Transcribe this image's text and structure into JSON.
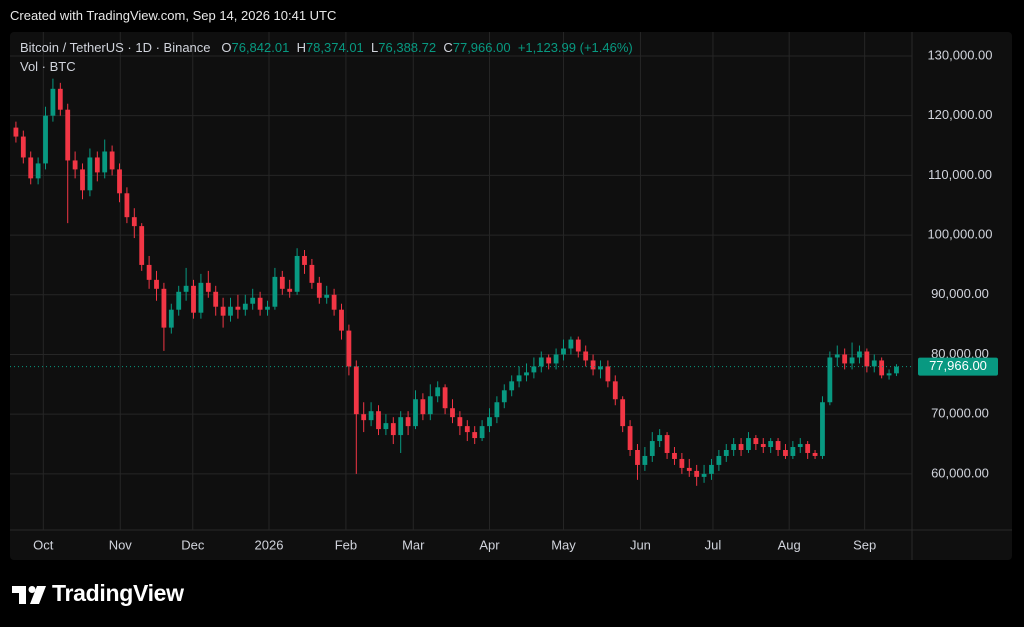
{
  "watermark": "Created with TradingView.com, Sep 14, 2026 10:41 UTC",
  "brand": "TradingView",
  "chart_data": {
    "type": "candlestick",
    "title": "Bitcoin / TetherUS · 1D · Binance",
    "header": {
      "open_prefix": "O",
      "open_label": "76,842.01",
      "high_prefix": "H",
      "high_label": "78,374.01",
      "low_prefix": "L",
      "low_label": "76,388.72",
      "close_prefix": "C",
      "close_label": "77,966.00",
      "change_label": "+1,123.99 (+1.46%)"
    },
    "volume_label": "Vol · BTC",
    "last_price_label": "77,966.00",
    "up_color": "#089981",
    "down_color": "#f23645",
    "grid": true,
    "ylim": [
      50600,
      134350
    ],
    "yticks": [
      {
        "value": 60000,
        "label": "60,000.00"
      },
      {
        "value": 70000,
        "label": "70,000.00"
      },
      {
        "value": 80000,
        "label": "80,000.00"
      },
      {
        "value": 90000,
        "label": "90,000.00"
      },
      {
        "value": 100000,
        "label": "100,000.00"
      },
      {
        "value": 110000,
        "label": "110,000.00"
      },
      {
        "value": 120000,
        "label": "120,000.00"
      },
      {
        "value": 130000,
        "label": "130,000.00"
      }
    ],
    "xlim": [
      -0.8,
      121.1
    ],
    "xticks": [
      {
        "value": 3.7,
        "label": "Oct"
      },
      {
        "value": 14.1,
        "label": "Nov"
      },
      {
        "value": 23.9,
        "label": "Dec"
      },
      {
        "value": 34.2,
        "label": "2026"
      },
      {
        "value": 44.6,
        "label": "Feb"
      },
      {
        "value": 53.7,
        "label": "Mar"
      },
      {
        "value": 64.0,
        "label": "Apr"
      },
      {
        "value": 74.0,
        "label": "May"
      },
      {
        "value": 84.4,
        "label": "Jun"
      },
      {
        "value": 94.2,
        "label": "Jul"
      },
      {
        "value": 104.5,
        "label": "Aug"
      },
      {
        "value": 114.7,
        "label": "Sep"
      }
    ],
    "open": [
      118000,
      116500,
      113000,
      109500,
      112000,
      120000,
      124500,
      121000,
      112500,
      111000,
      107500,
      113000,
      110500,
      114000,
      111000,
      107000,
      103000,
      101500,
      95000,
      92500,
      91000,
      84500,
      87500,
      90500,
      91500,
      87000,
      92000,
      90500,
      88000,
      86500,
      88000,
      87500,
      88500,
      89500,
      87500,
      88000,
      93000,
      91000,
      90500,
      96500,
      95000,
      92000,
      89500,
      90000,
      87500,
      84000,
      78000,
      70000,
      69000,
      70500,
      67500,
      68500,
      66500,
      69500,
      68000,
      72500,
      70000,
      73000,
      74500,
      71000,
      69500,
      68000,
      67000,
      66000,
      68000,
      69500,
      72000,
      74000,
      75500,
      76500,
      77000,
      78000,
      79500,
      78500,
      80000,
      81000,
      82500,
      80500,
      79000,
      77500,
      78000,
      75500,
      72500,
      68000,
      64000,
      61500,
      63000,
      65500,
      66500,
      63500,
      62500,
      61000,
      60500,
      59500,
      60000,
      61500,
      63000,
      64000,
      65000,
      64000,
      66000,
      65000,
      64500,
      65500,
      64000,
      63000,
      64500,
      65000,
      63500,
      63000,
      72000,
      79500,
      80000,
      78500,
      79500,
      80500,
      78000,
      79000,
      76500,
      76842.01
    ],
    "high": [
      119000,
      117500,
      114000,
      113000,
      121500,
      126200,
      125500,
      122000,
      114000,
      112000,
      114500,
      114000,
      116000,
      115000,
      112000,
      108000,
      104500,
      102000,
      96500,
      94000,
      92000,
      88500,
      91500,
      94500,
      92500,
      93500,
      94000,
      91500,
      89500,
      89500,
      90000,
      90000,
      91000,
      90500,
      89000,
      94500,
      94000,
      92500,
      97800,
      97500,
      96000,
      93000,
      91500,
      91000,
      88500,
      85000,
      79000,
      72000,
      72000,
      71500,
      70000,
      69500,
      70500,
      70500,
      74000,
      73500,
      75000,
      75500,
      75000,
      72500,
      70500,
      69000,
      68000,
      69000,
      71000,
      73000,
      75000,
      76500,
      78000,
      78500,
      79500,
      80500,
      80000,
      81000,
      82500,
      83000,
      83000,
      81500,
      80000,
      79000,
      79000,
      76500,
      73000,
      69000,
      65000,
      64500,
      67000,
      67500,
      67000,
      64500,
      63500,
      62500,
      61500,
      61500,
      62500,
      64000,
      65000,
      66000,
      66000,
      67000,
      66500,
      66000,
      66000,
      66000,
      65000,
      65500,
      66000,
      65500,
      64000,
      73000,
      80500,
      81500,
      81000,
      82000,
      81500,
      81000,
      80000,
      79500,
      77500,
      78374.01
    ],
    "low": [
      115500,
      112000,
      108500,
      108500,
      111000,
      119000,
      120000,
      102000,
      109500,
      106000,
      106500,
      109000,
      109500,
      110000,
      105500,
      102000,
      99500,
      94000,
      91000,
      89000,
      80600,
      83500,
      86500,
      89000,
      86000,
      86000,
      89500,
      86500,
      84500,
      85500,
      86000,
      86500,
      87500,
      86500,
      86500,
      87500,
      90000,
      89500,
      90000,
      93500,
      91000,
      88500,
      88500,
      86500,
      82500,
      76500,
      60000,
      67000,
      68000,
      66500,
      66500,
      65000,
      63500,
      66500,
      67500,
      69000,
      69000,
      72000,
      70000,
      68500,
      66500,
      65500,
      65000,
      65500,
      67000,
      68500,
      71000,
      73000,
      74500,
      75500,
      76000,
      77000,
      77500,
      77500,
      79000,
      80000,
      79500,
      78000,
      76500,
      76000,
      74500,
      71500,
      67000,
      63000,
      59000,
      60500,
      62000,
      64500,
      62500,
      61500,
      60000,
      59500,
      58000,
      58500,
      59000,
      60500,
      62000,
      63000,
      63000,
      63500,
      64000,
      63500,
      63500,
      63000,
      62500,
      62500,
      63500,
      62500,
      62500,
      62500,
      71500,
      78000,
      77500,
      77500,
      78500,
      77000,
      77000,
      76000,
      75800,
      76388.72
    ],
    "close": [
      116500,
      113000,
      109500,
      112000,
      120000,
      124500,
      121000,
      112500,
      111000,
      107500,
      113000,
      110500,
      114000,
      111000,
      107000,
      103000,
      101500,
      95000,
      92500,
      91000,
      84500,
      87500,
      90500,
      91500,
      87000,
      92000,
      90500,
      88000,
      86500,
      88000,
      87500,
      88500,
      89500,
      87500,
      88000,
      93000,
      91000,
      90500,
      96500,
      95000,
      92000,
      89500,
      90000,
      87500,
      84000,
      78000,
      70000,
      69000,
      70500,
      67500,
      68500,
      66500,
      69500,
      68000,
      72500,
      70000,
      73000,
      74500,
      71000,
      69500,
      68000,
      67000,
      66000,
      68000,
      69500,
      72000,
      74000,
      75500,
      76500,
      77000,
      78000,
      79500,
      78500,
      80000,
      81000,
      82500,
      80500,
      79000,
      77500,
      78000,
      75500,
      72500,
      68000,
      64000,
      61500,
      63000,
      65500,
      66500,
      63500,
      62500,
      61000,
      60500,
      59500,
      60000,
      61500,
      63000,
      64000,
      65000,
      64000,
      66000,
      65000,
      64500,
      65500,
      64000,
      63000,
      64500,
      65000,
      63500,
      63000,
      72000,
      79500,
      80000,
      78500,
      79500,
      80500,
      78000,
      79000,
      76500,
      76842.01,
      77966
    ]
  }
}
